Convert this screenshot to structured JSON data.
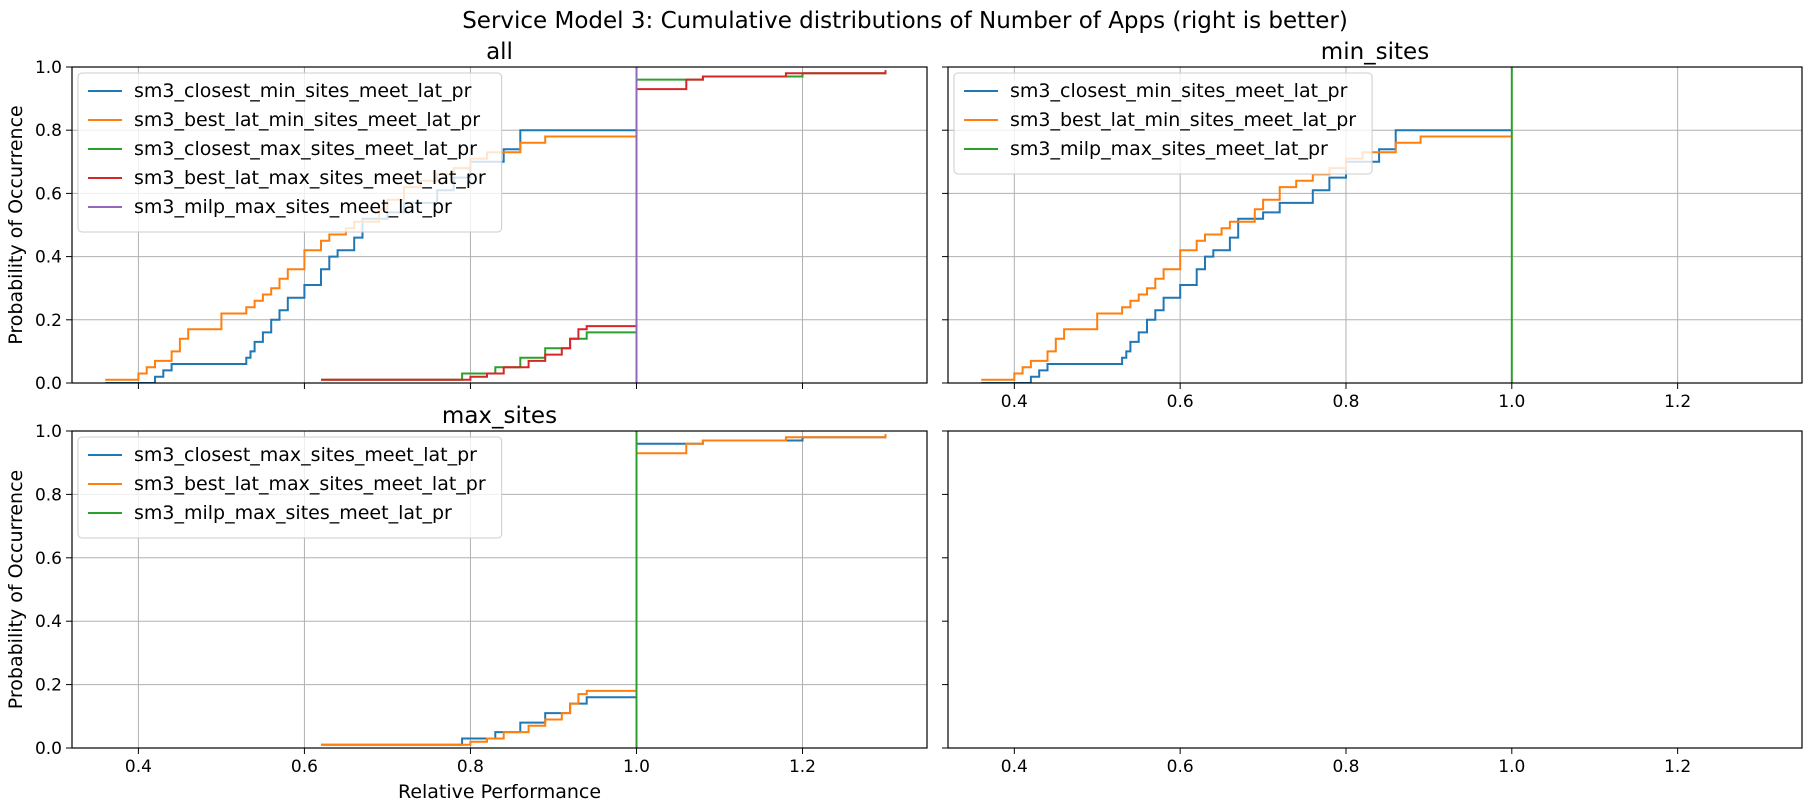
{
  "figure": {
    "suptitle": "Service Model 3: Cumulative distributions of Number of Apps (right is better)"
  },
  "colors": {
    "blue": "#1f77b4",
    "orange": "#ff7f0e",
    "green": "#2ca02c",
    "red": "#d62728",
    "purple": "#9467bd"
  },
  "chart_data": [
    {
      "type": "line",
      "step": true,
      "title": "all",
      "xlabel": "",
      "ylabel": "Probability of Occurrence",
      "xlim": [
        0.32,
        1.35
      ],
      "ylim": [
        0,
        1
      ],
      "xticks": [
        "0.4",
        "0.6",
        "0.8",
        "1.0",
        "1.2"
      ],
      "yticks": [
        "0.0",
        "0.2",
        "0.4",
        "0.6",
        "0.8",
        "1.0"
      ],
      "grid": true,
      "legend": "top-left",
      "series": [
        {
          "name": "sm3_closest_min_sites_meet_lat_pr",
          "color": "#1f77b4",
          "x": [
            0.36,
            0.42,
            0.43,
            0.44,
            0.53,
            0.535,
            0.54,
            0.55,
            0.56,
            0.57,
            0.58,
            0.6,
            0.62,
            0.63,
            0.64,
            0.66,
            0.67,
            0.7,
            0.72,
            0.76,
            0.78,
            0.8,
            0.84,
            0.86,
            1.0
          ],
          "y": [
            0.0,
            0.02,
            0.04,
            0.06,
            0.08,
            0.1,
            0.13,
            0.16,
            0.2,
            0.23,
            0.27,
            0.31,
            0.36,
            0.4,
            0.42,
            0.46,
            0.52,
            0.54,
            0.57,
            0.61,
            0.65,
            0.7,
            0.74,
            0.8,
            0.8
          ]
        },
        {
          "name": "sm3_best_lat_min_sites_meet_lat_pr",
          "color": "#ff7f0e",
          "x": [
            0.36,
            0.4,
            0.41,
            0.42,
            0.44,
            0.45,
            0.46,
            0.5,
            0.53,
            0.54,
            0.55,
            0.56,
            0.57,
            0.58,
            0.6,
            0.62,
            0.63,
            0.65,
            0.66,
            0.69,
            0.7,
            0.72,
            0.74,
            0.76,
            0.78,
            0.8,
            0.82,
            0.86,
            0.89,
            1.0
          ],
          "y": [
            0.01,
            0.03,
            0.05,
            0.07,
            0.1,
            0.14,
            0.17,
            0.22,
            0.24,
            0.26,
            0.28,
            0.3,
            0.33,
            0.36,
            0.42,
            0.45,
            0.47,
            0.49,
            0.51,
            0.55,
            0.58,
            0.62,
            0.64,
            0.66,
            0.68,
            0.71,
            0.73,
            0.76,
            0.78,
            0.78
          ]
        },
        {
          "name": "sm3_closest_max_sites_meet_lat_pr",
          "color": "#2ca02c",
          "x": [
            0.62,
            0.79,
            0.83,
            0.86,
            0.89,
            0.92,
            0.94,
            1.0,
            1.08,
            1.2,
            1.3
          ],
          "y": [
            0.01,
            0.03,
            0.05,
            0.08,
            0.11,
            0.14,
            0.16,
            0.96,
            0.97,
            0.98,
            0.99
          ]
        },
        {
          "name": "sm3_best_lat_max_sites_meet_lat_pr",
          "color": "#d62728",
          "x": [
            0.62,
            0.8,
            0.82,
            0.84,
            0.87,
            0.89,
            0.91,
            0.92,
            0.93,
            0.94,
            1.0,
            1.06,
            1.08,
            1.18,
            1.3
          ],
          "y": [
            0.01,
            0.02,
            0.03,
            0.05,
            0.07,
            0.09,
            0.11,
            0.14,
            0.17,
            0.18,
            0.93,
            0.96,
            0.97,
            0.98,
            0.99
          ]
        },
        {
          "name": "sm3_milp_max_sites_meet_lat_pr",
          "color": "#9467bd",
          "x": [
            1.0,
            1.0
          ],
          "y": [
            0.0,
            1.0
          ]
        }
      ]
    },
    {
      "type": "line",
      "step": true,
      "title": "min_sites",
      "xlabel": "",
      "ylabel": "",
      "xlim": [
        0.32,
        1.35
      ],
      "ylim": [
        0,
        1
      ],
      "xticks": [
        "0.4",
        "0.6",
        "0.8",
        "1.0",
        "1.2"
      ],
      "yticks": [],
      "grid": true,
      "legend": "top-left",
      "series": [
        {
          "name": "sm3_closest_min_sites_meet_lat_pr",
          "color": "#1f77b4",
          "x": [
            0.36,
            0.42,
            0.43,
            0.44,
            0.53,
            0.535,
            0.54,
            0.55,
            0.56,
            0.57,
            0.58,
            0.6,
            0.62,
            0.63,
            0.64,
            0.66,
            0.67,
            0.7,
            0.72,
            0.76,
            0.78,
            0.8,
            0.84,
            0.86,
            1.0
          ],
          "y": [
            0.0,
            0.02,
            0.04,
            0.06,
            0.08,
            0.1,
            0.13,
            0.16,
            0.2,
            0.23,
            0.27,
            0.31,
            0.36,
            0.4,
            0.42,
            0.46,
            0.52,
            0.54,
            0.57,
            0.61,
            0.65,
            0.7,
            0.74,
            0.8,
            0.8
          ]
        },
        {
          "name": "sm3_best_lat_min_sites_meet_lat_pr",
          "color": "#ff7f0e",
          "x": [
            0.36,
            0.4,
            0.41,
            0.42,
            0.44,
            0.45,
            0.46,
            0.5,
            0.53,
            0.54,
            0.55,
            0.56,
            0.57,
            0.58,
            0.6,
            0.62,
            0.63,
            0.65,
            0.66,
            0.69,
            0.7,
            0.72,
            0.74,
            0.76,
            0.78,
            0.8,
            0.82,
            0.86,
            0.89,
            1.0
          ],
          "y": [
            0.01,
            0.03,
            0.05,
            0.07,
            0.1,
            0.14,
            0.17,
            0.22,
            0.24,
            0.26,
            0.28,
            0.3,
            0.33,
            0.36,
            0.42,
            0.45,
            0.47,
            0.49,
            0.51,
            0.55,
            0.58,
            0.62,
            0.64,
            0.66,
            0.68,
            0.71,
            0.73,
            0.76,
            0.78,
            0.78
          ]
        },
        {
          "name": "sm3_milp_max_sites_meet_lat_pr",
          "color": "#2ca02c",
          "x": [
            1.0,
            1.0
          ],
          "y": [
            0.0,
            1.0
          ]
        }
      ]
    },
    {
      "type": "line",
      "step": true,
      "title": "max_sites",
      "xlabel": "Relative Performance",
      "ylabel": "Probability of Occurrence",
      "xlim": [
        0.32,
        1.35
      ],
      "ylim": [
        0,
        1
      ],
      "xticks": [
        "0.4",
        "0.6",
        "0.8",
        "1.0",
        "1.2"
      ],
      "yticks": [
        "0.0",
        "0.2",
        "0.4",
        "0.6",
        "0.8",
        "1.0"
      ],
      "grid": true,
      "legend": "top-left",
      "series": [
        {
          "name": "sm3_closest_max_sites_meet_lat_pr",
          "color": "#1f77b4",
          "x": [
            0.62,
            0.79,
            0.83,
            0.86,
            0.89,
            0.92,
            0.94,
            1.0,
            1.08,
            1.2,
            1.3
          ],
          "y": [
            0.01,
            0.03,
            0.05,
            0.08,
            0.11,
            0.14,
            0.16,
            0.96,
            0.97,
            0.98,
            0.99
          ]
        },
        {
          "name": "sm3_best_lat_max_sites_meet_lat_pr",
          "color": "#ff7f0e",
          "x": [
            0.62,
            0.8,
            0.82,
            0.84,
            0.87,
            0.89,
            0.91,
            0.92,
            0.93,
            0.94,
            1.0,
            1.06,
            1.08,
            1.18,
            1.3
          ],
          "y": [
            0.01,
            0.02,
            0.03,
            0.05,
            0.07,
            0.09,
            0.11,
            0.14,
            0.17,
            0.18,
            0.93,
            0.96,
            0.97,
            0.98,
            0.99
          ]
        },
        {
          "name": "sm3_milp_max_sites_meet_lat_pr",
          "color": "#2ca02c",
          "x": [
            1.0,
            1.0
          ],
          "y": [
            0.0,
            1.0
          ]
        }
      ]
    },
    {
      "type": "line",
      "step": true,
      "title": "",
      "xlabel": "",
      "ylabel": "",
      "xlim": [
        0.32,
        1.35
      ],
      "ylim": [
        0,
        1
      ],
      "xticks": [
        "0.4",
        "0.6",
        "0.8",
        "1.0",
        "1.2"
      ],
      "yticks": [],
      "grid": false,
      "legend": "none",
      "series": []
    }
  ]
}
